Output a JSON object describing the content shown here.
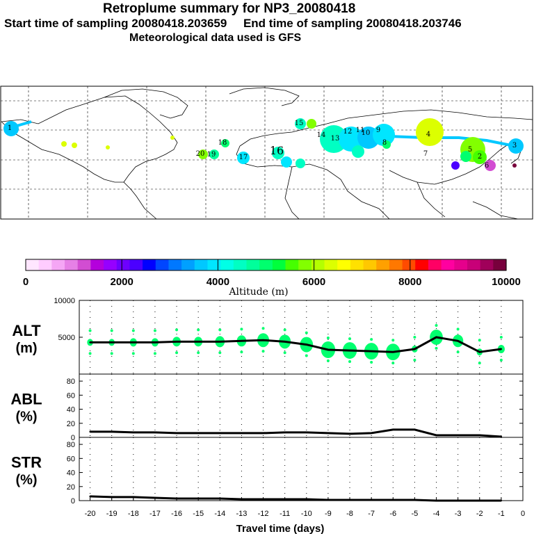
{
  "header": {
    "title": "Retroplume summary for NP3_20080418",
    "sampling": "Start time of sampling 20080418.203659     End time of sampling 20080418.203746",
    "met": "Meteorological data used is GFS"
  },
  "map": {
    "labels": [
      "1",
      "20",
      "19",
      "18",
      "17",
      "16",
      "15",
      "14",
      "13",
      "12",
      "11",
      "10",
      "9",
      "8",
      "7",
      "6",
      "5",
      "4",
      "3",
      "2"
    ]
  },
  "colorbar": {
    "ticks": [
      "0",
      "2000",
      "4000",
      "6000",
      "8000",
      "10000"
    ],
    "label": "Altitude (m)",
    "colors": [
      "#ffe6ff",
      "#ffccff",
      "#f5a6f5",
      "#e680e6",
      "#d24dd2",
      "#b400dc",
      "#9600ff",
      "#6e00ff",
      "#4b00ff",
      "#0000ff",
      "#0046ff",
      "#0078ff",
      "#00a0ff",
      "#00c8ff",
      "#00e6ff",
      "#00ffe6",
      "#00ffc3",
      "#00ff9b",
      "#00ff6e",
      "#00ff3c",
      "#46ff00",
      "#82ff00",
      "#b4ff00",
      "#dcff00",
      "#ffff00",
      "#ffe100",
      "#ffc800",
      "#ffa000",
      "#ff7800",
      "#ff4b00",
      "#ff0000",
      "#ff0064",
      "#ff00a0",
      "#e6008c",
      "#c80078",
      "#a0005a",
      "#78003c"
    ]
  },
  "chart_data": [
    {
      "type": "line",
      "name": "ALT",
      "ylabel": "ALT\n(m)",
      "ylabel_lines": [
        "ALT",
        "(m)"
      ],
      "ylim": [
        0,
        10000
      ],
      "yticks": [
        "5000",
        "10000"
      ],
      "x": [
        -20,
        -19,
        -18,
        -17,
        -16,
        -15,
        -14,
        -13,
        -12,
        -11,
        -10,
        -9,
        -8,
        -7,
        -6,
        -5,
        -4,
        -3,
        -2,
        -1
      ],
      "values": [
        4300,
        4300,
        4300,
        4300,
        4400,
        4400,
        4400,
        4500,
        4600,
        4400,
        4000,
        3300,
        3200,
        3100,
        3000,
        3400,
        5000,
        4500,
        3000,
        3400
      ]
    },
    {
      "type": "line",
      "name": "ABL",
      "ylabel_lines": [
        "ABL",
        "(%)"
      ],
      "ylim": [
        0,
        90
      ],
      "yticks": [
        "0",
        "20",
        "40",
        "60",
        "80"
      ],
      "x": [
        -20,
        -19,
        -18,
        -17,
        -16,
        -15,
        -14,
        -13,
        -12,
        -11,
        -10,
        -9,
        -8,
        -7,
        -6,
        -5,
        -4,
        -3,
        -2,
        -1
      ],
      "values": [
        8,
        8,
        7,
        7,
        6,
        6,
        6,
        6,
        6,
        7,
        7,
        6,
        5,
        6,
        11,
        11,
        3,
        3,
        3,
        1
      ]
    },
    {
      "type": "line",
      "name": "STR",
      "ylabel_lines": [
        "STR",
        "(%)"
      ],
      "ylim": [
        0,
        90
      ],
      "yticks": [
        "0",
        "20",
        "40",
        "60",
        "80"
      ],
      "xlabel": "Travel time (days)",
      "xticks": [
        "-20",
        "-19",
        "-18",
        "-17",
        "-16",
        "-15",
        "-14",
        "-13",
        "-12",
        "-11",
        "-10",
        "-9",
        "-8",
        "-7",
        "-6",
        "-5",
        "-4",
        "-3",
        "-2",
        "-1",
        "0"
      ],
      "x": [
        -20,
        -19,
        -18,
        -17,
        -16,
        -15,
        -14,
        -13,
        -12,
        -11,
        -10,
        -9,
        -8,
        -7,
        -6,
        -5,
        -4,
        -3,
        -2,
        -1
      ],
      "values": [
        6,
        5,
        5,
        4,
        3,
        3,
        3,
        2,
        2,
        2,
        2,
        1,
        1,
        1,
        1,
        1,
        0,
        0,
        0,
        0
      ]
    }
  ]
}
